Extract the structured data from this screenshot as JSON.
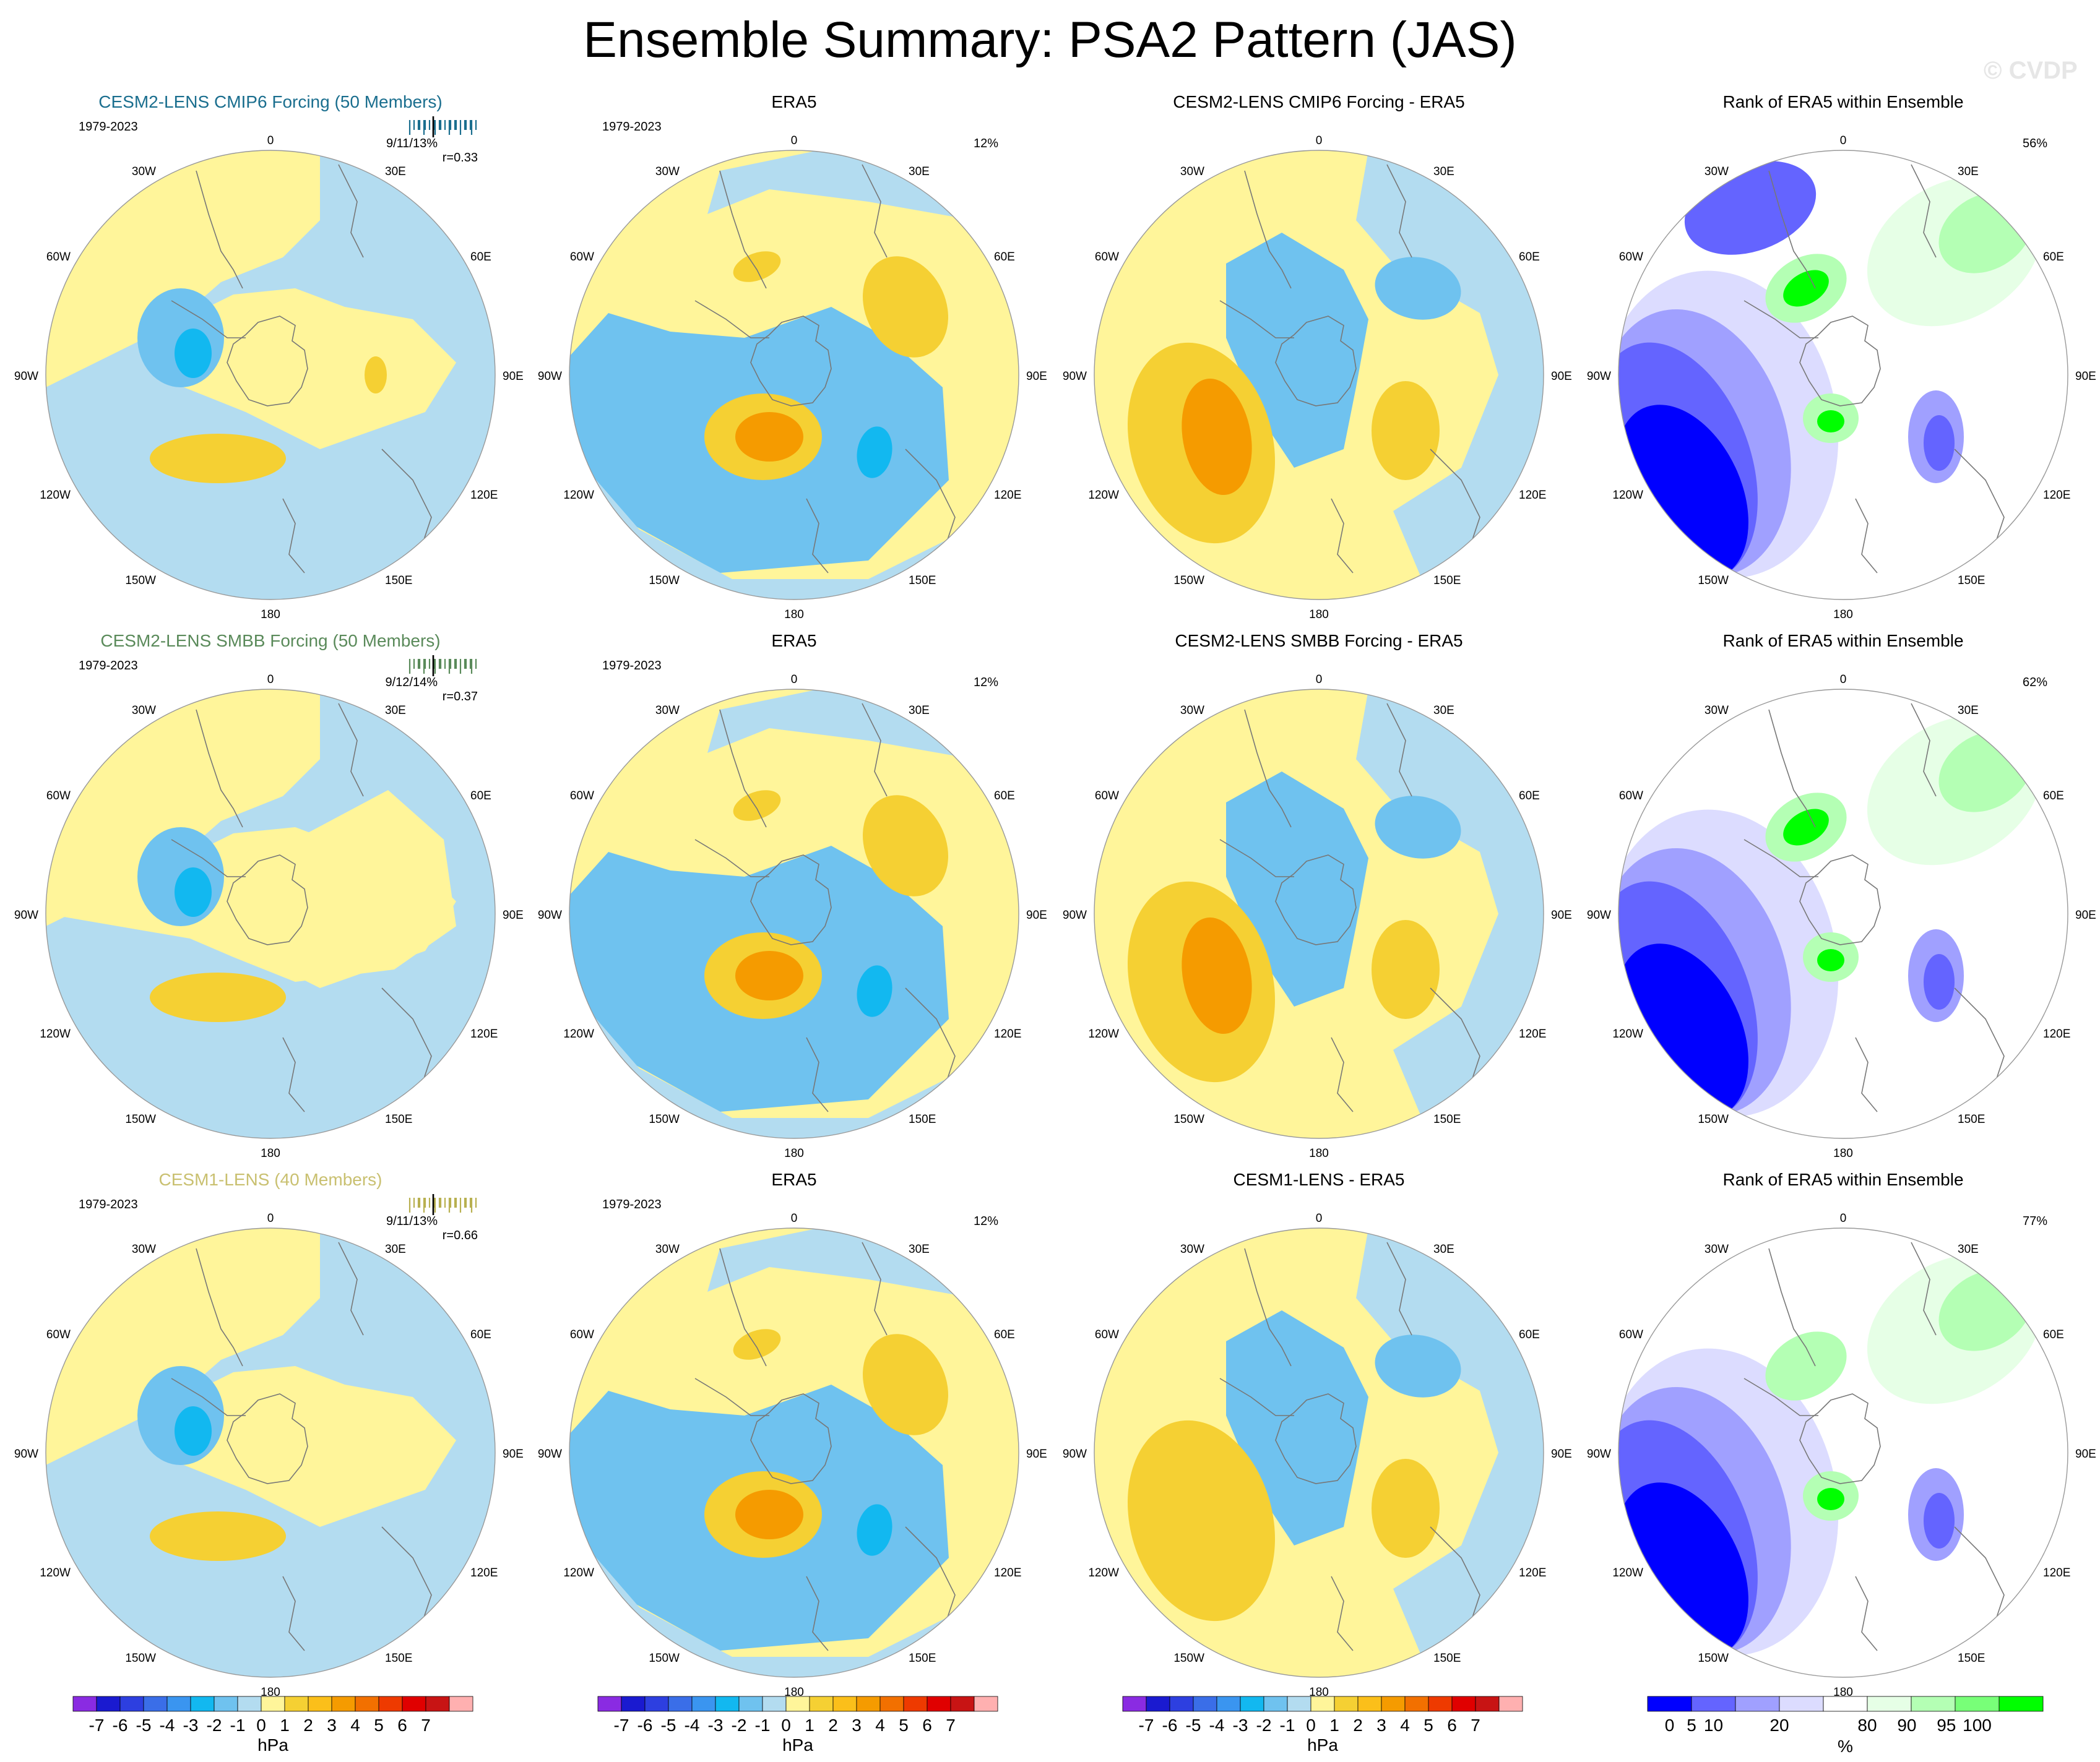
{
  "page": {
    "title": "Ensemble Summary: PSA2 Pattern (JAS)",
    "watermark": "© CVDP"
  },
  "map_labels": {
    "top": "0",
    "bottom": "180",
    "left": "90W",
    "right": "90E",
    "ul_outer": "60W",
    "ul_inner": "30W",
    "ur_inner": "30E",
    "ur_outer": "60E",
    "ll_outer": "120W",
    "ll_inner": "150W",
    "lr_inner": "150E",
    "lr_outer": "120E"
  },
  "rows": [
    {
      "model_title": "CESM2-LENS CMIP6 Forcing (50 Members)",
      "model_title_color": "#1a6e8e",
      "period": "1979-2023",
      "member_stats": "9/11/13%",
      "correlation": "r=0.33",
      "tick_color": "#1a6e8e",
      "obs_title": "ERA5",
      "obs_period": "1979-2023",
      "obs_pct": "12%",
      "diff_title": "CESM2-LENS CMIP6 Forcing - ERA5",
      "rank_title": "Rank of ERA5 within Ensemble",
      "rank_pct": "56%"
    },
    {
      "model_title": "CESM2-LENS SMBB Forcing (50 Members)",
      "model_title_color": "#5a8a5a",
      "period": "1979-2023",
      "member_stats": "9/12/14%",
      "correlation": "r=0.37",
      "tick_color": "#5a8a5a",
      "obs_title": "ERA5",
      "obs_period": "1979-2023",
      "obs_pct": "12%",
      "diff_title": "CESM2-LENS SMBB Forcing - ERA5",
      "rank_title": "Rank of ERA5 within Ensemble",
      "rank_pct": "62%"
    },
    {
      "model_title": "CESM1-LENS (40 Members)",
      "model_title_color": "#c9c070",
      "period": "1979-2023",
      "member_stats": "9/11/13%",
      "correlation": "r=0.66",
      "tick_color": "#b8b050",
      "obs_title": "ERA5",
      "obs_period": "1979-2023",
      "obs_pct": "12%",
      "diff_title": "CESM1-LENS - ERA5",
      "rank_title": "Rank of ERA5 within Ensemble",
      "rank_pct": "77%"
    }
  ],
  "colorbar_hpa": {
    "unit": "hPa",
    "colors": [
      "#8a2be2",
      "#1a1ad0",
      "#2d3fe0",
      "#3a6ee8",
      "#3a95f0",
      "#12b8f0",
      "#6fc2ef",
      "#b3dcf0",
      "#fff59a",
      "#f5d033",
      "#fbbf1a",
      "#f59b00",
      "#f27000",
      "#ee3a00",
      "#e00000",
      "#c81414",
      "#ffb0b0"
    ],
    "labels": [
      "-7",
      "-6",
      "-5",
      "-4",
      "-3",
      "-2",
      "-1",
      "0",
      "1",
      "2",
      "3",
      "4",
      "5",
      "6",
      "7"
    ]
  },
  "colorbar_rank": {
    "unit": "%",
    "colors": [
      "#0000ff",
      "#6464ff",
      "#a0a0ff",
      "#dcdcff",
      "#ffffff",
      "#e6ffe6",
      "#b4ffb4",
      "#78ff78",
      "#00ff00"
    ],
    "labels": [
      "0",
      "5",
      "10",
      "20",
      "80",
      "90",
      "95",
      "100"
    ]
  },
  "field_colors": {
    "neg3": "#6fc2ef",
    "neg2": "#12b8f0",
    "neg1": "#b3dcf0",
    "pos1": "#fff59a",
    "pos2": "#f5d033",
    "pos3": "#f59b00",
    "rank_blue_dark": "#0000ff",
    "rank_blue_mid": "#6464ff",
    "rank_blue_light": "#a0a0ff",
    "rank_blue_pale": "#dcdcff",
    "rank_green_pale": "#e6ffe6",
    "rank_green_light": "#b4ffb4",
    "rank_green": "#00ff00"
  }
}
